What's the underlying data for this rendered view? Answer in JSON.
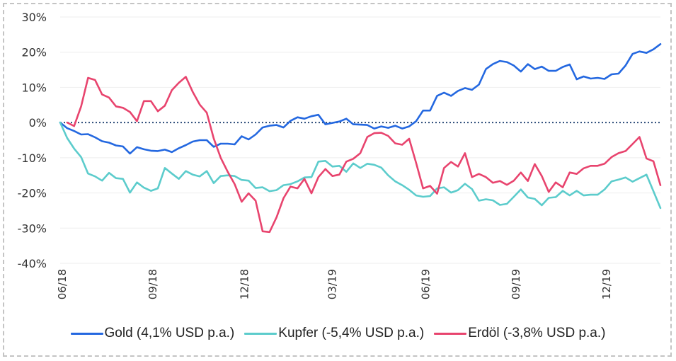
{
  "chart_data": {
    "type": "line",
    "title": "",
    "xlabel": "",
    "ylabel": "",
    "ylim": [
      -40,
      30
    ],
    "yticks": [
      30,
      20,
      10,
      0,
      -10,
      -20,
      -30,
      -40
    ],
    "ytick_labels": [
      "30%",
      "20%",
      "10%",
      "0%",
      "-10%",
      "-20%",
      "-30%",
      "-40%"
    ],
    "xticks": [
      {
        "label": "06/18",
        "index": 0.3
      },
      {
        "label": "09/18",
        "index": 13.3
      },
      {
        "label": "12/18",
        "index": 26.4
      },
      {
        "label": "03/19",
        "index": 39.0
      },
      {
        "label": "06/19",
        "index": 52.4
      },
      {
        "label": "09/19",
        "index": 65.3
      },
      {
        "label": "12/19",
        "index": 78.3
      }
    ],
    "x_points": 87,
    "grid": true,
    "zero_line": {
      "style": "dotted",
      "color": "#2b4a78"
    },
    "legend_position": "bottom",
    "series": [
      {
        "name": "Gold (4,1% USD p.a.)",
        "color": "#2468e0",
        "values": [
          0,
          -1.6,
          -2.4,
          -3.4,
          -3.3,
          -4.2,
          -5.3,
          -5.7,
          -6.5,
          -6.8,
          -8.8,
          -7.0,
          -7.6,
          -8.0,
          -8.1,
          -7.7,
          -8.4,
          -7.3,
          -6.4,
          -5.4,
          -5.0,
          -5.0,
          -6.9,
          -6.0,
          -6.0,
          -6.2,
          -3.9,
          -4.8,
          -3.4,
          -1.4,
          -0.9,
          -0.7,
          -1.4,
          0.5,
          1.5,
          1.1,
          1.8,
          2.2,
          -0.5,
          -0.1,
          0.3,
          1.1,
          -0.5,
          -0.6,
          -0.7,
          -1.7,
          -1.1,
          -1.5,
          -0.9,
          -1.7,
          -1.1,
          0.4,
          3.4,
          3.4,
          7.6,
          8.5,
          7.6,
          9.0,
          9.8,
          9.3,
          10.8,
          15.2,
          16.6,
          17.5,
          17.2,
          16.2,
          14.5,
          16.6,
          15.2,
          15.9,
          14.7,
          14.7,
          15.8,
          16.5,
          12.3,
          13.1,
          12.5,
          12.7,
          12.4,
          13.7,
          13.9,
          16.2,
          19.5,
          20.2,
          19.8,
          20.8,
          22.3
        ]
      },
      {
        "name": "Kupfer (-5,4% USD p.a.)",
        "color": "#5ccccc",
        "values": [
          0,
          -4.4,
          -7.4,
          -9.8,
          -14.5,
          -15.3,
          -16.5,
          -14.3,
          -15.8,
          -16.0,
          -19.9,
          -17.0,
          -18.5,
          -19.4,
          -18.7,
          -12.9,
          -14.5,
          -16.0,
          -13.8,
          -14.8,
          -15.3,
          -13.8,
          -17.2,
          -15.2,
          -15.0,
          -15.2,
          -16.3,
          -16.5,
          -18.6,
          -18.4,
          -19.5,
          -19.2,
          -17.8,
          -17.5,
          -16.7,
          -15.6,
          -15.5,
          -11.1,
          -10.9,
          -12.5,
          -12.3,
          -14.0,
          -11.6,
          -12.9,
          -11.7,
          -12.0,
          -12.8,
          -15.0,
          -16.7,
          -17.8,
          -19.1,
          -20.7,
          -21.1,
          -20.9,
          -18.7,
          -18.4,
          -19.9,
          -19.2,
          -17.4,
          -18.9,
          -22.2,
          -21.8,
          -22.1,
          -23.4,
          -23.1,
          -21.1,
          -19.0,
          -21.3,
          -21.7,
          -23.5,
          -21.4,
          -21.2,
          -19.4,
          -20.7,
          -19.4,
          -20.7,
          -20.5,
          -20.5,
          -19.0,
          -16.7,
          -16.2,
          -15.6,
          -16.8,
          -15.8,
          -14.8,
          -19.5,
          -24.3
        ]
      },
      {
        "name": "Erdöl (-3,8% USD p.a.)",
        "color": "#e8446e",
        "values": [
          null,
          0,
          -1.0,
          4.6,
          12.7,
          12.1,
          8.0,
          7.1,
          4.6,
          4.2,
          3.0,
          0.4,
          6.1,
          6.1,
          3.2,
          4.8,
          9.2,
          11.3,
          13.0,
          8.7,
          5.1,
          2.8,
          -4.5,
          -10.0,
          -14.0,
          -17.5,
          -22.5,
          -20.1,
          -22.2,
          -30.9,
          -31.1,
          -26.9,
          -21.5,
          -18.2,
          -18.7,
          -16.0,
          -20.1,
          -15.5,
          -13.2,
          -15.2,
          -14.8,
          -11.1,
          -10.3,
          -8.7,
          -4.1,
          -3.0,
          -2.9,
          -3.8,
          -5.9,
          -6.3,
          -4.6,
          -11.5,
          -18.7,
          -18.0,
          -20.2,
          -12.9,
          -11.2,
          -12.5,
          -8.7,
          -15.5,
          -14.6,
          -15.5,
          -17.1,
          -16.6,
          -17.7,
          -16.5,
          -14.2,
          -16.6,
          -11.8,
          -15.2,
          -19.7,
          -17.0,
          -18.4,
          -14.2,
          -14.6,
          -13.0,
          -12.3,
          -12.3,
          -11.7,
          -9.8,
          -8.7,
          -8.1,
          -6.1,
          -4.1,
          -10.2,
          -11.0,
          -17.8
        ]
      }
    ]
  }
}
